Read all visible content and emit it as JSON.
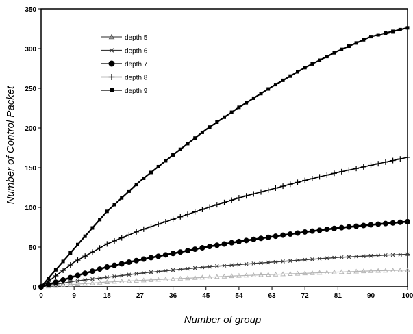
{
  "chart_data": {
    "type": "line",
    "title": "",
    "xlabel": "Number of group",
    "ylabel": "Number of Control Packet",
    "xlim": [
      0,
      100
    ],
    "ylim": [
      0,
      350
    ],
    "x_ticks": [
      "0",
      "9",
      "18",
      "27",
      "36",
      "45",
      "54",
      "63",
      "72",
      "81",
      "90",
      "100"
    ],
    "y_ticks": [
      "0",
      "50",
      "100",
      "150",
      "200",
      "250",
      "300",
      "350"
    ],
    "grid": false,
    "legend_position": "top-left",
    "x": [
      0,
      9,
      18,
      27,
      36,
      45,
      54,
      63,
      72,
      81,
      90,
      100
    ],
    "series": [
      {
        "name": "depth 5",
        "marker": "triangle",
        "values": [
          0,
          3,
          6,
          8,
          10,
          12,
          14,
          15.5,
          17,
          18.5,
          20,
          21
        ]
      },
      {
        "name": "depth 6",
        "marker": "asterisk",
        "values": [
          0,
          7,
          12,
          17,
          21,
          25,
          28,
          31,
          34,
          37,
          39,
          41
        ]
      },
      {
        "name": "depth 7",
        "marker": "circle",
        "values": [
          0,
          13,
          25,
          34,
          42,
          50,
          57,
          63,
          69,
          74,
          78,
          82
        ]
      },
      {
        "name": "depth 8",
        "marker": "plus",
        "values": [
          0,
          31,
          54,
          71,
          85,
          99,
          112,
          123,
          134,
          144,
          153,
          163
        ]
      },
      {
        "name": "depth 9",
        "marker": "square",
        "values": [
          0,
          48,
          95,
          133,
          166,
          198,
          226,
          252,
          276,
          297,
          315,
          326
        ]
      }
    ]
  }
}
